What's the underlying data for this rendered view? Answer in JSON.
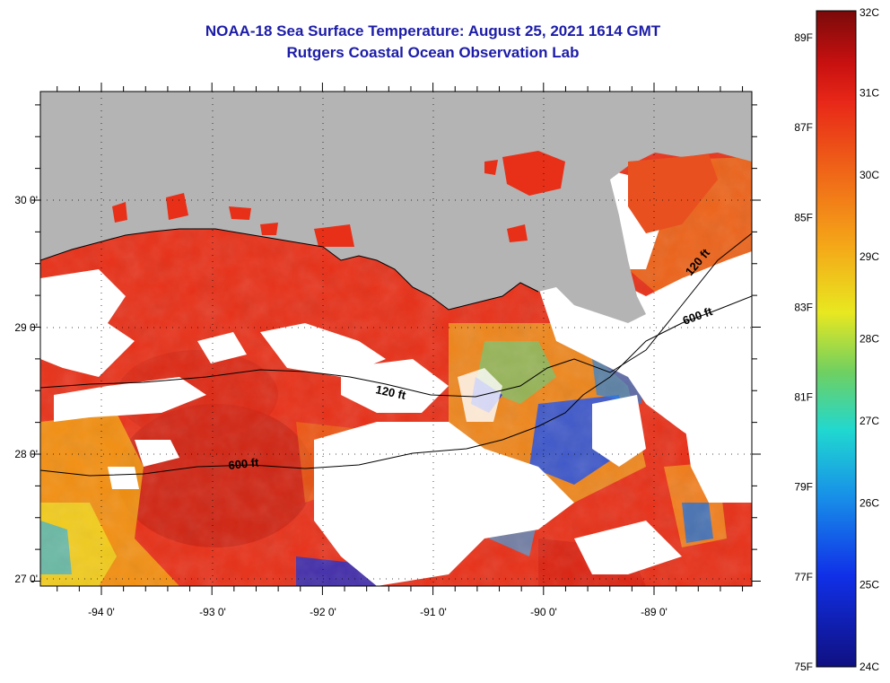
{
  "title": {
    "line1": "NOAA-18 Sea Surface Temperature:  August 25, 2021 1614 GMT",
    "line2": "Rutgers Coastal Ocean Observation Lab"
  },
  "map": {
    "lon_labels": [
      "-94 0'",
      "-93 0'",
      "-92 0'",
      "-91 0'",
      "-90 0'",
      "-89 0'"
    ],
    "lat_labels": [
      "30 0'",
      "29 0'",
      "28 0'",
      "27 0'"
    ],
    "contour_labels": [
      "120 ft",
      "120 ft",
      "600 ft",
      "600 ft"
    ],
    "colors": {
      "land": "#b4b4b4",
      "no_data": "#ffffff",
      "warm_sea": "#e8321a"
    }
  },
  "colorbar": {
    "celsius_labels": [
      "32C",
      "31C",
      "30C",
      "29C",
      "28C",
      "27C",
      "26C",
      "25C",
      "24C"
    ],
    "fahrenheit_labels": [
      "89F",
      "87F",
      "85F",
      "83F",
      "81F",
      "79F",
      "77F",
      "75F"
    ],
    "range_c": [
      24,
      32
    ],
    "range_f": [
      75,
      89.6
    ]
  }
}
